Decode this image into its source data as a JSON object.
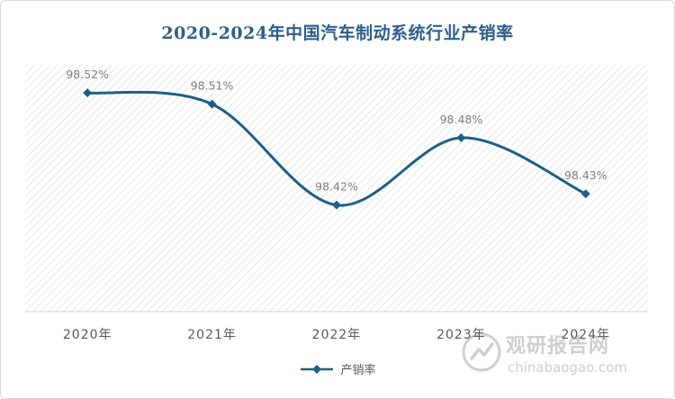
{
  "chart_data": {
    "type": "line",
    "title": "2020-2024年中国汽车制动系统行业产销率",
    "categories": [
      "2020年",
      "2021年",
      "2022年",
      "2023年",
      "2024年"
    ],
    "series": [
      {
        "name": "产销率",
        "values": [
          98.52,
          98.51,
          98.42,
          98.48,
          98.43
        ],
        "data_labels": [
          "98.52%",
          "98.51%",
          "98.42%",
          "98.48%",
          "98.43%"
        ]
      }
    ],
    "ylim": [
      98.325,
      98.545
    ],
    "smooth": true,
    "grid": false,
    "legend_position": "bottom",
    "colors": {
      "line": "#1f5f86",
      "label": "#7f7f7f",
      "title": "#2e5f8a",
      "hatch": "#d9d9d9"
    }
  },
  "watermark": {
    "cn": "观研报告网",
    "en": "chinabaogao.com"
  }
}
